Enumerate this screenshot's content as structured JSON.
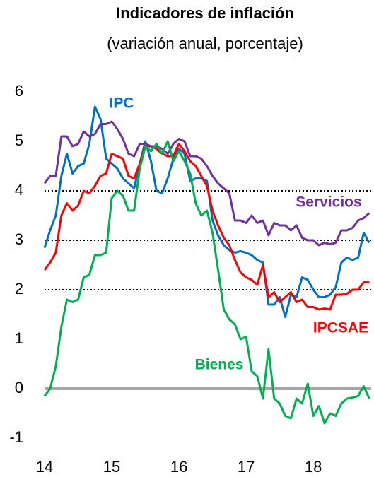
{
  "chart_data": {
    "type": "line",
    "title": "Indicadores de inflación",
    "subtitle": "(variación anual, porcentaje)",
    "x": [
      14,
      14.083,
      14.167,
      14.25,
      14.333,
      14.417,
      14.5,
      14.583,
      14.667,
      14.75,
      14.833,
      14.917,
      15,
      15.083,
      15.167,
      15.25,
      15.333,
      15.417,
      15.5,
      15.583,
      15.667,
      15.75,
      15.833,
      15.917,
      16,
      16.083,
      16.167,
      16.25,
      16.333,
      16.417,
      16.5,
      16.583,
      16.667,
      16.75,
      16.833,
      16.917,
      17,
      17.083,
      17.167,
      17.25,
      17.333,
      17.417,
      17.5,
      17.583,
      17.667,
      17.75,
      17.833,
      17.917,
      18,
      18.083,
      18.167,
      18.25,
      18.333,
      18.417,
      18.5,
      18.583,
      18.667,
      18.75,
      18.833
    ],
    "series": [
      {
        "name": "IPC",
        "color": "#0070c0",
        "values": [
          2.85,
          3.2,
          3.5,
          4.3,
          4.75,
          4.35,
          4.5,
          4.55,
          4.95,
          5.7,
          5.45,
          4.65,
          4.55,
          4.45,
          4.25,
          4.15,
          4.05,
          4.55,
          5.0,
          4.6,
          4.0,
          3.95,
          4.25,
          4.65,
          4.85,
          4.75,
          4.2,
          4.25,
          4.25,
          4.2,
          3.4,
          3.1,
          2.9,
          2.8,
          2.75,
          2.78,
          2.75,
          2.7,
          2.6,
          2.55,
          1.7,
          1.7,
          1.85,
          1.45,
          1.9,
          1.85,
          2.25,
          2.2,
          2.0,
          1.85,
          1.85,
          1.9,
          2.05,
          2.55,
          2.65,
          2.6,
          2.65,
          3.15,
          2.95
        ]
      },
      {
        "name": "IPCSAE",
        "color": "#ff0000",
        "values": [
          2.4,
          2.55,
          2.75,
          3.5,
          3.75,
          3.6,
          3.7,
          4.0,
          3.95,
          4.1,
          4.3,
          4.35,
          4.75,
          4.7,
          4.65,
          4.3,
          4.25,
          4.55,
          4.9,
          4.9,
          4.85,
          4.75,
          4.7,
          4.7,
          4.95,
          4.8,
          4.6,
          4.5,
          4.3,
          4.1,
          3.6,
          3.3,
          3.05,
          2.9,
          2.6,
          2.35,
          2.25,
          2.2,
          2.1,
          2.5,
          1.85,
          1.95,
          1.75,
          1.85,
          1.95,
          1.75,
          1.8,
          1.65,
          1.65,
          1.6,
          1.62,
          1.6,
          1.9,
          1.9,
          1.92,
          2.0,
          2.0,
          2.15,
          2.15
        ]
      },
      {
        "name": "Servicios",
        "color": "#7030a0",
        "values": [
          4.15,
          4.3,
          4.3,
          5.1,
          5.1,
          4.9,
          4.95,
          5.2,
          5.1,
          5.15,
          5.35,
          5.35,
          5.4,
          5.25,
          5.05,
          4.75,
          4.7,
          4.95,
          4.95,
          4.9,
          4.9,
          4.85,
          4.75,
          4.95,
          5.05,
          5.0,
          4.7,
          4.7,
          4.65,
          4.5,
          4.3,
          4.15,
          4.05,
          3.95,
          3.4,
          3.4,
          3.35,
          3.5,
          3.35,
          3.4,
          3.1,
          3.35,
          3.3,
          3.3,
          3.2,
          3.3,
          3.05,
          3.0,
          3.0,
          2.9,
          2.95,
          2.92,
          2.95,
          3.2,
          3.2,
          3.25,
          3.4,
          3.45,
          3.55
        ]
      },
      {
        "name": "Bienes",
        "color": "#00b050",
        "values": [
          -0.15,
          0.0,
          0.45,
          1.25,
          1.8,
          1.75,
          1.8,
          2.25,
          2.3,
          2.7,
          2.7,
          2.75,
          3.85,
          4.0,
          3.9,
          3.6,
          3.6,
          4.45,
          4.9,
          4.8,
          4.95,
          4.75,
          5.0,
          4.6,
          4.8,
          4.6,
          4.35,
          3.75,
          3.5,
          3.6,
          3.15,
          2.4,
          1.6,
          1.4,
          1.3,
          1.0,
          1.05,
          0.35,
          0.25,
          -0.2,
          0.8,
          -0.2,
          -0.3,
          -0.55,
          -0.6,
          -0.2,
          -0.3,
          0.1,
          -0.55,
          -0.35,
          -0.7,
          -0.5,
          -0.55,
          -0.3,
          -0.2,
          -0.18,
          -0.15,
          0.05,
          -0.2
        ]
      }
    ],
    "xlim": [
      14,
      18.84
    ],
    "xticks": [
      14,
      15,
      16,
      17,
      18
    ],
    "ylim": [
      -1,
      6
    ],
    "yticks": [
      -1,
      0,
      1,
      2,
      3,
      4,
      5,
      6
    ],
    "reference_lines": [
      2,
      3,
      4
    ]
  }
}
